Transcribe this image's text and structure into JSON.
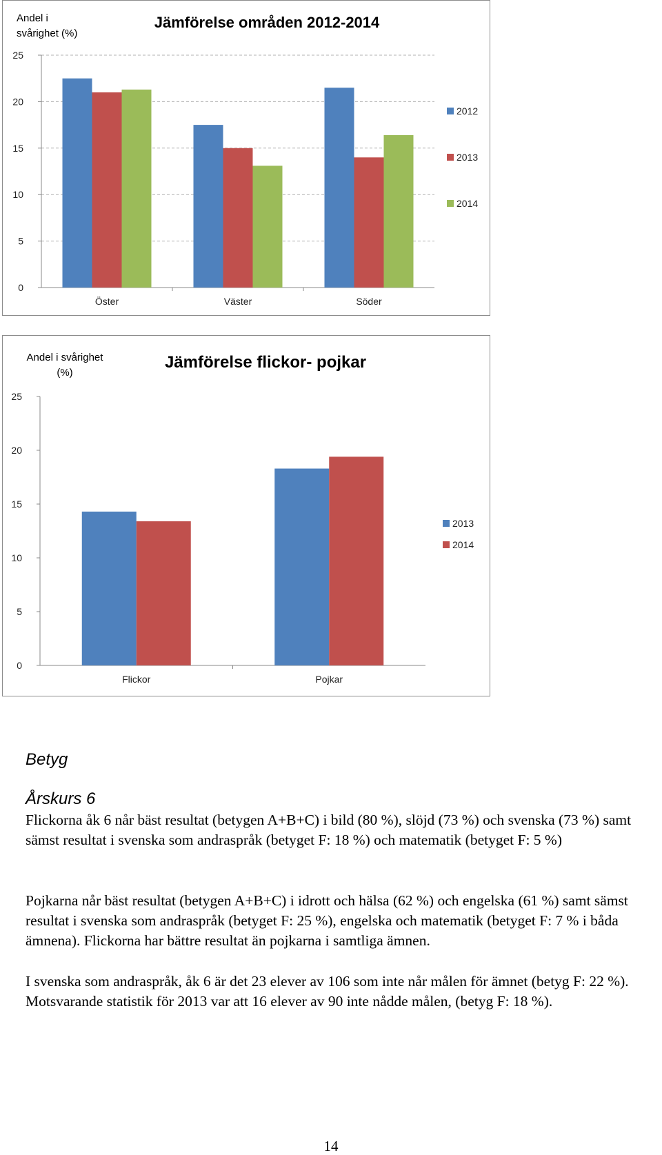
{
  "chart_data": [
    {
      "type": "bar",
      "title": "Jämförelse områden 2012-2014",
      "ylabel_lines": [
        "Andel i",
        "svårighet  (%)"
      ],
      "categories": [
        "Öster",
        "Väster",
        "Söder"
      ],
      "series": [
        {
          "name": "2012",
          "color": "#4f81bd",
          "values": [
            22.5,
            17.5,
            21.5
          ]
        },
        {
          "name": "2013",
          "color": "#c0504d",
          "values": [
            21.0,
            15.0,
            14.0
          ]
        },
        {
          "name": "2014",
          "color": "#9bbb59",
          "values": [
            21.3,
            13.1,
            16.4
          ]
        }
      ],
      "ylim": [
        0,
        25
      ],
      "yticks": [
        "0",
        "5",
        "10",
        "15",
        "20",
        "25"
      ],
      "grid": true,
      "legend": "right"
    },
    {
      "type": "bar",
      "title": "Jämförelse flickor- pojkar",
      "ylabel_lines": [
        "Andel i svårighet",
        "(%)"
      ],
      "categories": [
        "Flickor",
        "Pojkar"
      ],
      "series": [
        {
          "name": "2013",
          "color": "#4f81bd",
          "values": [
            14.3,
            18.3
          ]
        },
        {
          "name": "2014",
          "color": "#c0504d",
          "values": [
            13.4,
            19.4
          ]
        }
      ],
      "ylim": [
        0,
        25
      ],
      "yticks": [
        "0",
        "5",
        "10",
        "15",
        "20",
        "25"
      ],
      "grid": false,
      "legend": "right"
    }
  ],
  "text": {
    "heading_betyg": "Betyg",
    "heading_arskurs": "Årskurs 6",
    "paragraph1": "Flickorna åk 6 når bäst resultat (betygen A+B+C) i bild (80 %), slöjd (73 %) och svenska (73 %) samt sämst resultat i svenska som andraspråk (betyget F: 18 %) och matematik (betyget F: 5 %)",
    "paragraph2": "Pojkarna når bäst resultat (betygen A+B+C) i idrott och hälsa (62 %) och engelska (61 %) samt sämst resultat i svenska som andraspråk (betyget F: 25 %), engelska och matematik (betyget F: 7 % i båda ämnena).  Flickorna har bättre resultat än pojkarna i samtliga ämnen.",
    "paragraph3": "I svenska som andraspråk, åk 6 är det 23 elever av 106 som inte når målen för ämnet (betyg F: 22 %). Motsvarande statistik för 2013 var att 16 elever av 90 inte nådde målen, (betyg F: 18 %).",
    "page_number": "14"
  }
}
